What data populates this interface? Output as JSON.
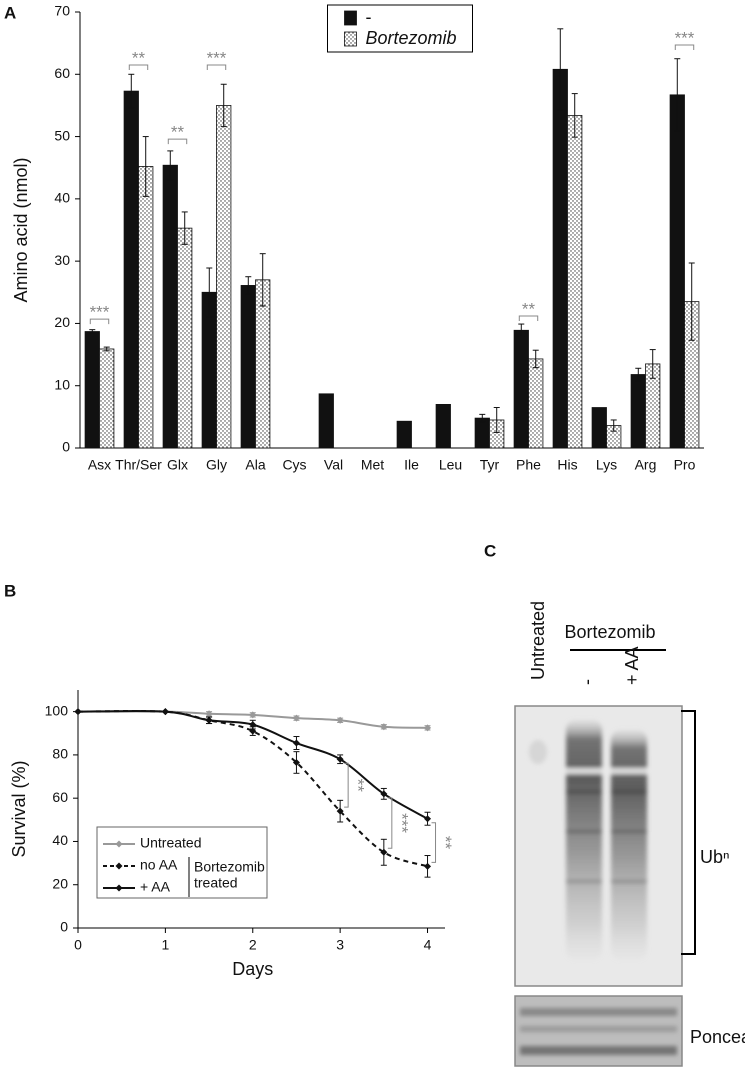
{
  "panel_labels": [
    "A",
    "B",
    "C"
  ],
  "chart_data": [
    {
      "type": "bar",
      "y_label": "Amino acid (nmol)",
      "categories": [
        "Asx",
        "Thr/Ser",
        "Glx",
        "Gly",
        "Ala",
        "Cys",
        "Val",
        "Met",
        "Ile",
        "Leu",
        "Tyr",
        "Phe",
        "His",
        "Lys",
        "Arg",
        "Pro"
      ],
      "series": [
        {
          "name": "-",
          "color": "#111111",
          "values": [
            18.7,
            57.3,
            45.4,
            25,
            26.1,
            0,
            8.7,
            0,
            4.3,
            7,
            4.8,
            18.9,
            60.8,
            6.5,
            11.8,
            56.7
          ],
          "errors": [
            0.3,
            2.7,
            2.3,
            3.9,
            1.4,
            null,
            null,
            null,
            null,
            null,
            0.6,
            1,
            6.5,
            null,
            1,
            5.8
          ]
        },
        {
          "name": "Bortezomib",
          "color": "#ffffff",
          "pattern": "dots",
          "values": [
            15.9,
            45.2,
            35.3,
            55,
            27,
            0,
            0,
            0,
            0,
            0,
            4.5,
            14.3,
            53.4,
            3.6,
            13.5,
            23.5
          ],
          "errors": [
            0.3,
            4.8,
            2.6,
            3.4,
            4.2,
            null,
            null,
            null,
            null,
            null,
            2,
            1.4,
            3.5,
            0.9,
            2.3,
            6.2
          ]
        }
      ],
      "ylim": [
        0,
        70
      ],
      "yticks": [
        0,
        10,
        20,
        30,
        40,
        50,
        60,
        70
      ],
      "legend": "upper center",
      "annotations": [
        {
          "text": "***",
          "category": "Asx",
          "y": 20.7
        },
        {
          "text": "**",
          "category": "Thr/Ser",
          "y": 61.5
        },
        {
          "text": "**",
          "category": "Glx",
          "y": 49.6
        },
        {
          "text": "***",
          "category": "Gly",
          "y": 61.5
        },
        {
          "text": "**",
          "category": "Phe",
          "y": 21.2
        },
        {
          "text": "***",
          "category": "Pro",
          "y": 64.7
        }
      ]
    },
    {
      "type": "line",
      "x_label": "Days",
      "y_label": "Survival (%)",
      "x": [
        0,
        1,
        1.5,
        2,
        2.5,
        3,
        3.5,
        4
      ],
      "series": [
        {
          "name": "Untreated",
          "color": "#999999",
          "dash": false,
          "values": [
            100,
            100,
            99,
            98.5,
            97,
            96,
            93,
            92.5
          ],
          "errors": [
            0,
            0,
            1,
            1,
            1,
            1,
            1,
            1
          ]
        },
        {
          "name": "no AA",
          "color": "#111111",
          "dash": true,
          "values": [
            100,
            100,
            96,
            91,
            76.5,
            54,
            35,
            28.5
          ],
          "errors": [
            0,
            0,
            1.5,
            2,
            5,
            5,
            6,
            5
          ]
        },
        {
          "name": "+ AA",
          "color": "#111111",
          "dash": false,
          "values": [
            100,
            100,
            96,
            94,
            85.5,
            78,
            62,
            50.5
          ],
          "errors": [
            0,
            0,
            1.5,
            2,
            3,
            2,
            2.5,
            3
          ]
        }
      ],
      "xlim": [
        0,
        4.2
      ],
      "xticks": [
        0,
        1,
        2,
        3,
        4
      ],
      "ylim": [
        0,
        110
      ],
      "yticks": [
        0,
        20,
        40,
        60,
        80,
        100
      ],
      "legend": "lower left",
      "legend_group_label": [
        "Bortezomib",
        "treated"
      ],
      "annotations": [
        {
          "text": "**",
          "x": 3,
          "between": [
            "no AA",
            "+ AA"
          ]
        },
        {
          "text": "***",
          "x": 3.5,
          "between": [
            "no AA",
            "+ AA"
          ]
        },
        {
          "text": "**",
          "x": 4,
          "between": [
            "no AA",
            "+ AA"
          ]
        }
      ]
    }
  ],
  "blot": {
    "lanes": [
      "Untreated",
      "-",
      "+ AA"
    ],
    "group": "Bortezomib",
    "bracket_label": "Ubⁿ",
    "loading_label": "Ponceau"
  }
}
